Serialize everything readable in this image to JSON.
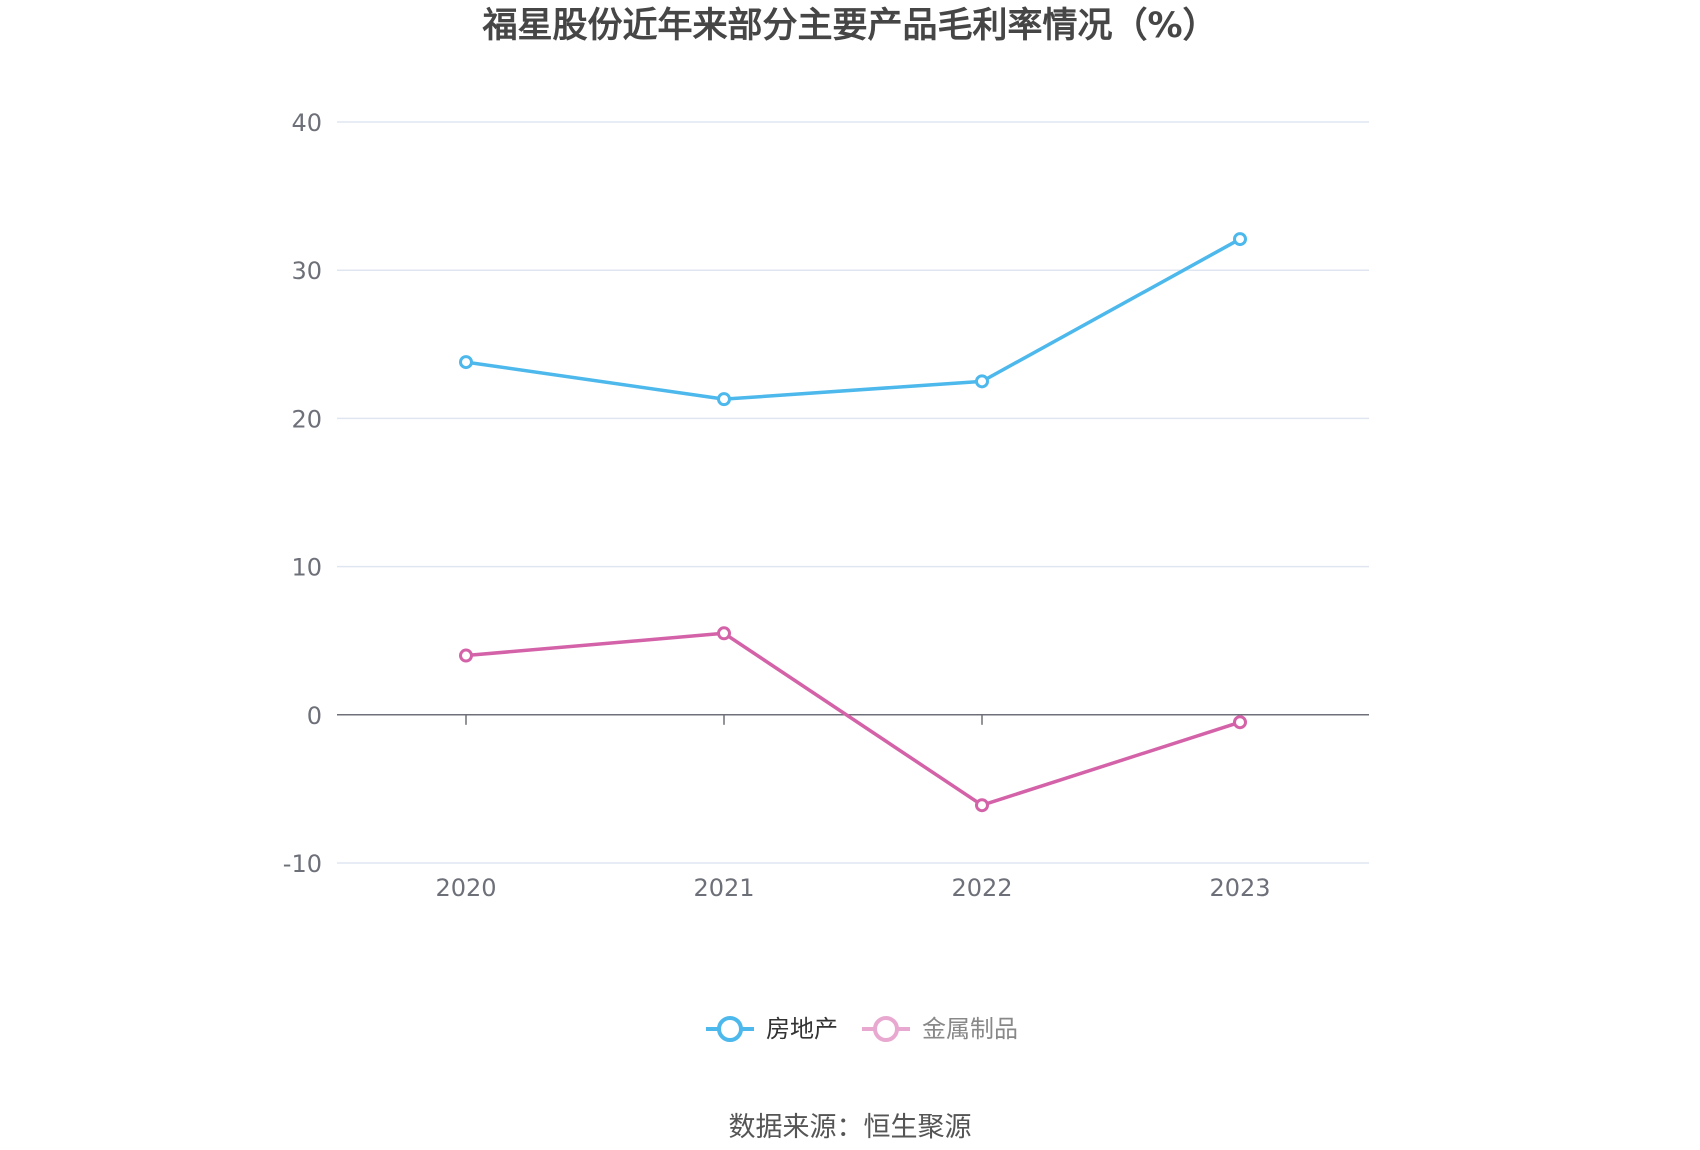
{
  "chart_data": {
    "type": "line",
    "title": "福星股份近年来部分主要产品毛利率情况（%）",
    "xlabel": "",
    "ylabel": "",
    "categories": [
      "2020",
      "2021",
      "2022",
      "2023"
    ],
    "ylim": [
      -10,
      40
    ],
    "yticks": [
      "40",
      "30",
      "20",
      "10",
      "0",
      "-10"
    ],
    "grid": true,
    "legend_position": "bottom",
    "series": [
      {
        "name": "房地产",
        "color": "#4db8ec",
        "values": [
          23.8,
          21.3,
          22.5,
          32.1
        ]
      },
      {
        "name": "金属制品",
        "color": "#d462a8",
        "values": [
          4.0,
          5.5,
          -6.1,
          -0.5
        ]
      }
    ],
    "legend": [
      {
        "label": "房地产",
        "color": "#4db8ec",
        "active": true
      },
      {
        "label": "金属制品",
        "color": "#e9a8d0",
        "active": false
      }
    ]
  },
  "source": "数据来源：恒生聚源"
}
